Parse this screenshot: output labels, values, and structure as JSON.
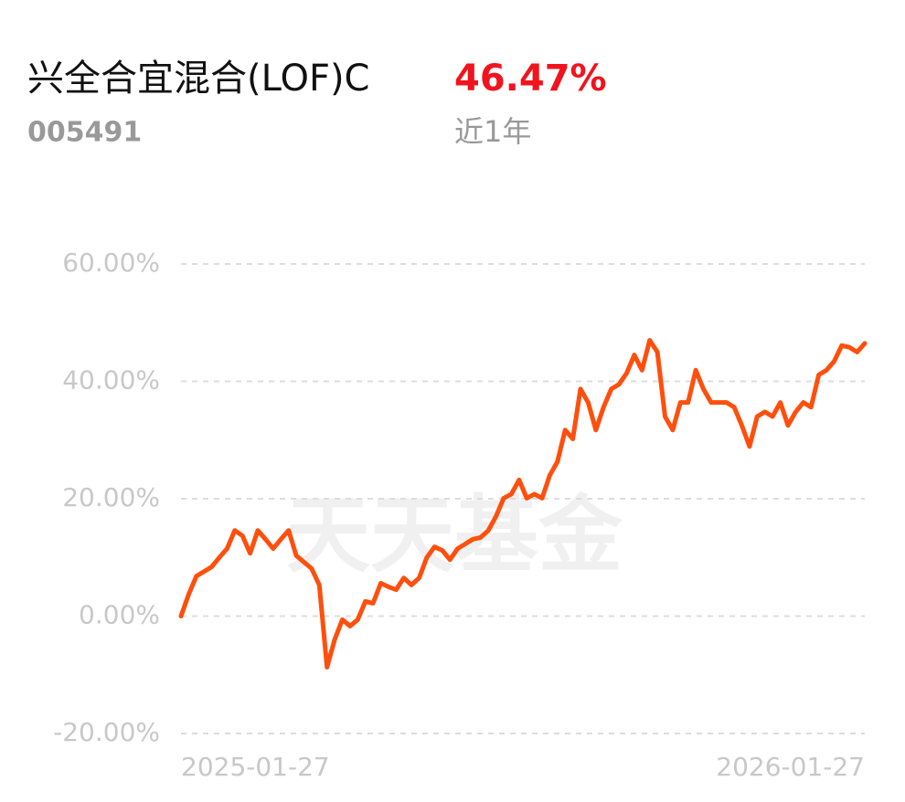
{
  "header": {
    "title": "兴全合宜混合(LOF)C",
    "code": "005491",
    "return": "46.47%",
    "period": "近1年",
    "watermark": "天天基金"
  },
  "chart_data": {
    "type": "line",
    "categories": [
      "2025-01-27",
      null,
      null,
      null,
      null,
      null,
      null,
      null,
      null,
      null,
      null,
      null,
      null,
      null,
      null,
      null,
      null,
      null,
      null,
      null,
      null,
      null,
      null,
      null,
      null,
      null,
      null,
      null,
      null,
      null,
      null,
      null,
      null,
      null,
      null,
      null,
      null,
      null,
      null,
      null,
      null,
      null,
      null,
      null,
      null,
      null,
      null,
      null,
      null,
      null,
      null,
      null,
      null,
      null,
      null,
      null,
      null,
      null,
      null,
      null,
      null,
      null,
      null,
      null,
      null,
      null,
      null,
      null,
      null,
      null,
      null,
      null,
      null,
      null,
      null,
      null,
      null,
      null,
      null,
      null,
      null,
      null,
      null,
      null,
      null,
      null,
      null,
      null,
      null,
      "2026-01-27"
    ],
    "series": [
      {
        "color": "#ff4f0d",
        "values": [
          0,
          3.7,
          6.8,
          7.6,
          8.4,
          10,
          11.5,
          14.6,
          13.7,
          10.7,
          14.6,
          13.1,
          11.5,
          13.1,
          14.6,
          10.3,
          9.2,
          8.1,
          5.3,
          -8.7,
          -4,
          -0.6,
          -1.7,
          -0.6,
          2.5,
          2.2,
          5.6,
          5,
          4.5,
          6.5,
          5.3,
          6.5,
          10,
          11.8,
          11.2,
          9.6,
          11.5,
          12.3,
          13.1,
          13.4,
          14.6,
          17,
          20.1,
          20.8,
          23.2,
          20.1,
          20.8,
          20.1,
          24,
          26.3,
          31.7,
          30.2,
          38.7,
          36.4,
          31.7,
          35.6,
          38.7,
          39.5,
          41.4,
          44.5,
          41.9,
          47,
          45,
          34,
          31.7,
          36.4,
          36.4,
          41.9,
          38.7,
          36.4,
          36.4,
          36.4,
          35.6,
          32.5,
          28.9,
          34,
          34.8,
          34,
          36.4,
          32.5,
          34.8,
          36.4,
          35.6,
          41.1,
          41.9,
          43.4,
          46.1,
          45.8,
          45,
          46.47
        ]
      }
    ],
    "ylim": [
      -20,
      60
    ],
    "yticks": [
      {
        "value": -20,
        "label": "-20.00%"
      },
      {
        "value": 0,
        "label": "0.00%"
      },
      {
        "value": 20,
        "label": "20.00%"
      },
      {
        "value": 40,
        "label": "40.00%"
      },
      {
        "value": 60,
        "label": "60.00%"
      }
    ],
    "grid": true
  }
}
